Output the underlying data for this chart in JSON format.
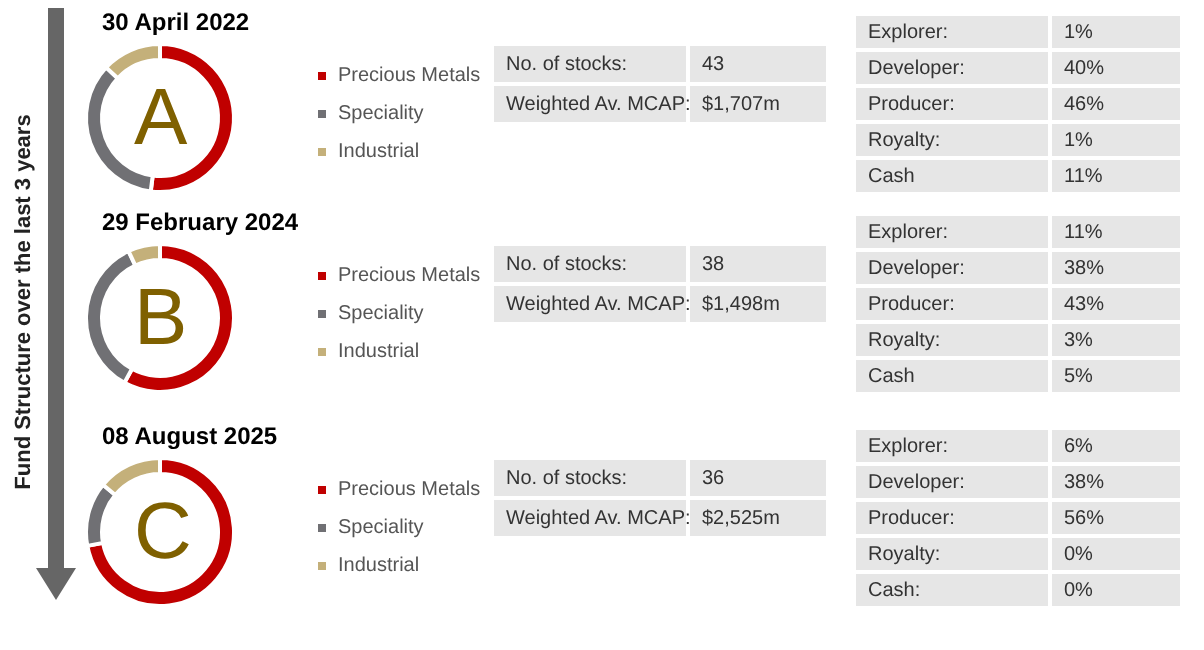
{
  "chart_data": [
    {
      "type": "other",
      "annotations": [
        "Fund Structure over the last 3 years"
      ]
    },
    {
      "type": "donut",
      "title": "30 April 2022",
      "categories": [
        "Precious Metals",
        "Speciality",
        "Industrial"
      ],
      "values": [
        52,
        35,
        13
      ],
      "colors": [
        "#c00000",
        "#707074",
        "#c4b07a"
      ],
      "legend": "right",
      "annotations": [
        "A"
      ]
    },
    {
      "type": "other",
      "annotations": [
        "No. of stocks:",
        "43",
        "Weighted Av. MCAP:",
        "$1,707m"
      ]
    },
    {
      "type": "other",
      "annotations": [
        "Explorer:",
        "1%",
        "Developer:",
        "40%",
        "Producer:",
        "46%",
        "Royalty:",
        "1%",
        "Cash",
        "11%"
      ]
    },
    {
      "type": "donut",
      "title": "29 February 2024",
      "categories": [
        "Precious Metals",
        "Speciality",
        "Industrial"
      ],
      "values": [
        58,
        35,
        7
      ],
      "colors": [
        "#c00000",
        "#707074",
        "#c4b07a"
      ],
      "legend": "right",
      "annotations": [
        "B"
      ]
    },
    {
      "type": "other",
      "annotations": [
        "No. of stocks:",
        "38",
        "Weighted Av. MCAP:",
        "$1,498m"
      ]
    },
    {
      "type": "other",
      "annotations": [
        "Explorer:",
        "11%",
        "Developer:",
        "38%",
        "Producer:",
        "43%",
        "Royalty:",
        "3%",
        "Cash",
        "5%"
      ]
    },
    {
      "type": "donut",
      "title": "08 August 2025",
      "categories": [
        "Precious Metals",
        "Speciality",
        "Industrial"
      ],
      "values": [
        72,
        14,
        14
      ],
      "colors": [
        "#c00000",
        "#707074",
        "#c4b07a"
      ],
      "legend": "right",
      "annotations": [
        "C"
      ]
    },
    {
      "type": "other",
      "annotations": [
        "No. of stocks:",
        "36",
        "Weighted Av. MCAP:",
        "$2,525m"
      ]
    },
    {
      "type": "other",
      "annotations": [
        "Explorer:",
        "6%",
        "Developer:",
        "38%",
        "Producer:",
        "56%",
        "Royalty:",
        "0%",
        "Cash:",
        "0%"
      ]
    }
  ]
}
